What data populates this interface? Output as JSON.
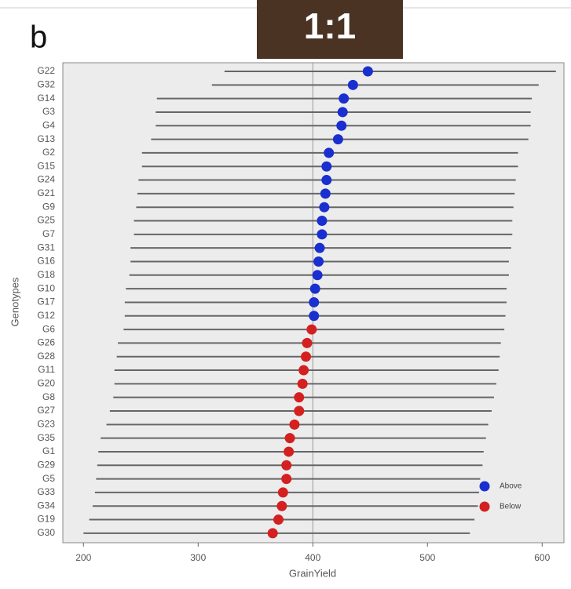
{
  "badge": "1:1",
  "chart_data": {
    "type": "dot-interval",
    "panel_label": "b",
    "x_label": "GrainYield",
    "y_label": "Genotypes",
    "xlim": [
      182,
      619
    ],
    "xticks": [
      200,
      300,
      400,
      500,
      600
    ],
    "vline": 400,
    "legend": "lower right",
    "series": [
      {
        "name": "Above",
        "color": "#1a2fd0",
        "categories": [
          "G22",
          "G32",
          "G14",
          "G3",
          "G4",
          "G13",
          "G2",
          "G15",
          "G24",
          "G21",
          "G9",
          "G25",
          "G7",
          "G31",
          "G16",
          "G18",
          "G10",
          "G17",
          "G12"
        ],
        "values": [
          448,
          435,
          427,
          426,
          425,
          422,
          414,
          412,
          412,
          411,
          410,
          408,
          408,
          406,
          405,
          404,
          402,
          401,
          401
        ],
        "lower": [
          323,
          312,
          264,
          263,
          263,
          259,
          251,
          251,
          248,
          247,
          246,
          244,
          244,
          241,
          241,
          240,
          237,
          236,
          236
        ],
        "upper": [
          612,
          597,
          591,
          590,
          590,
          588,
          579,
          579,
          577,
          576,
          575,
          574,
          574,
          573,
          571,
          571,
          569,
          569,
          568
        ]
      },
      {
        "name": "Below",
        "color": "#d42020",
        "categories": [
          "G6",
          "G26",
          "G28",
          "G11",
          "G20",
          "G8",
          "G27",
          "G23",
          "G35",
          "G1",
          "G29",
          "G5",
          "G33",
          "G34",
          "G19",
          "G30"
        ],
        "values": [
          399,
          395,
          394,
          392,
          391,
          388,
          388,
          384,
          380,
          379,
          377,
          377,
          374,
          373,
          370,
          365
        ],
        "lower": [
          235,
          230,
          229,
          227,
          227,
          226,
          223,
          220,
          215,
          213,
          212,
          211,
          210,
          208,
          205,
          200
        ],
        "upper": [
          567,
          564,
          563,
          562,
          560,
          558,
          556,
          553,
          551,
          549,
          548,
          546,
          545,
          544,
          541,
          537
        ]
      }
    ]
  }
}
